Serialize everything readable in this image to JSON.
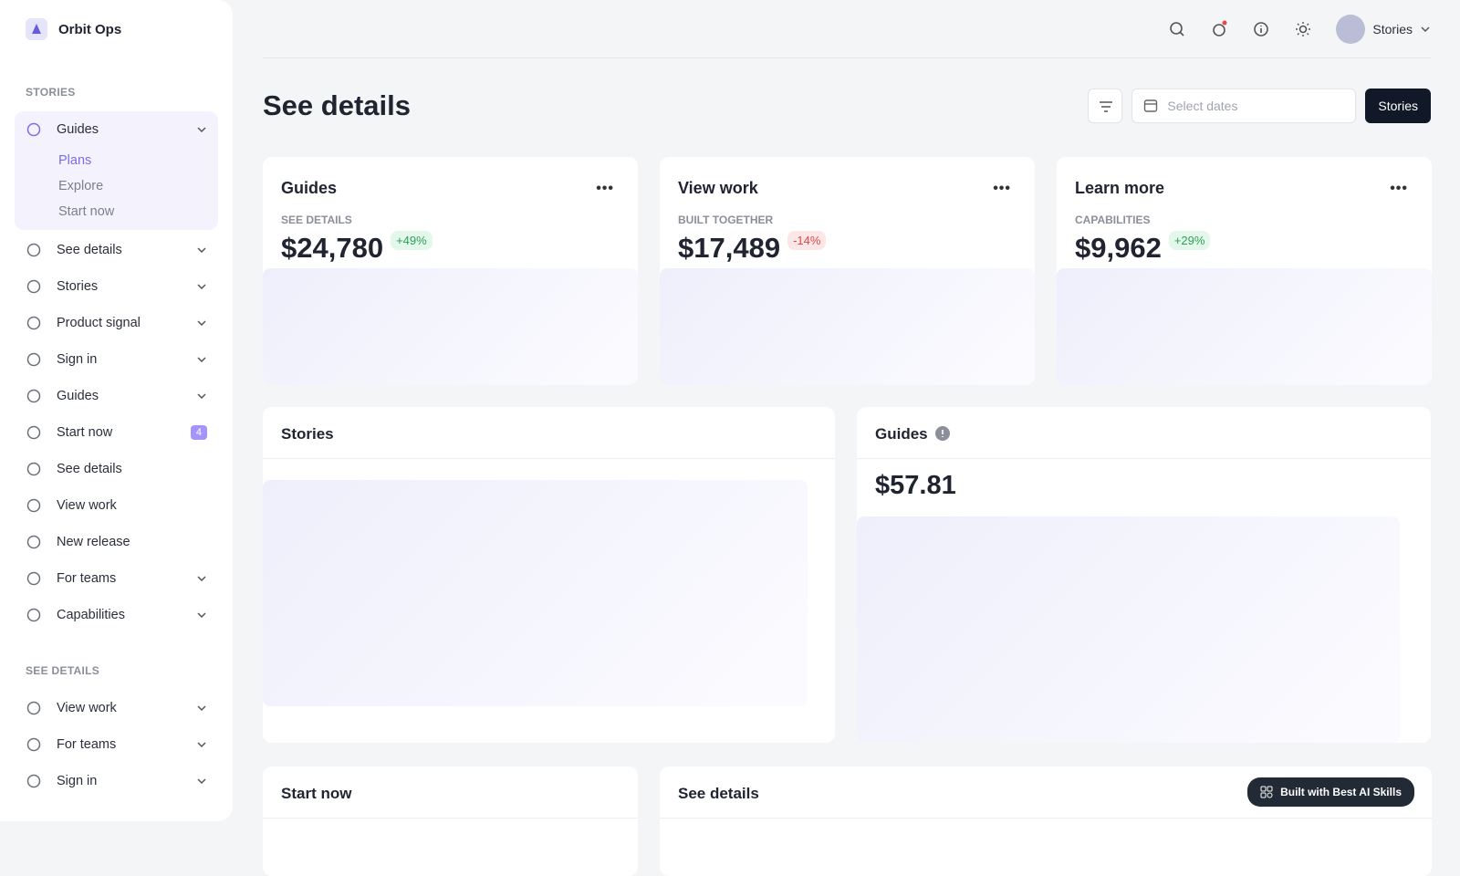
{
  "sidebar": {
    "brand": "Orbit Ops",
    "sections": [
      {
        "title": "STORIES",
        "items": [
          {
            "label": "Guides",
            "expandable": true,
            "open": true,
            "children": [
              "Plans",
              "Explore",
              "Start now"
            ]
          },
          {
            "label": "See details",
            "expandable": true
          },
          {
            "label": "Stories",
            "expandable": true
          },
          {
            "label": "Product signal",
            "expandable": true
          },
          {
            "label": "Sign in",
            "expandable": true
          },
          {
            "label": "Guides",
            "expandable": true
          },
          {
            "label": "Start now",
            "badge": 4
          },
          {
            "label": "See details"
          },
          {
            "label": "View work"
          },
          {
            "label": "New release"
          },
          {
            "label": "For teams",
            "expandable": true
          },
          {
            "label": "Capabilities",
            "expandable": true
          }
        ]
      },
      {
        "title": "SEE DETAILS",
        "items": [
          {
            "label": "View work",
            "expandable": true
          },
          {
            "label": "For teams",
            "expandable": true
          },
          {
            "label": "Sign in",
            "expandable": true
          }
        ]
      }
    ]
  },
  "topbar": {
    "user": "Stories"
  },
  "header": {
    "title": "See details",
    "date_placeholder": "Select dates",
    "button": "Stories"
  },
  "stat_cards": [
    {
      "title": "Guides",
      "label": "SEE DETAILS",
      "value": "$24,780",
      "change": "+49%",
      "trend": "up"
    },
    {
      "title": "View work",
      "label": "BUILT TOGETHER",
      "value": "$17,489",
      "change": "-14%",
      "trend": "down"
    },
    {
      "title": "Learn more",
      "label": "CAPABILITIES",
      "value": "$9,962",
      "change": "+29%",
      "trend": "up"
    }
  ],
  "panels": [
    {
      "title": "Stories"
    },
    {
      "title": "Guides",
      "value": "$57.81"
    }
  ],
  "bottom_panels": [
    {
      "title": "Start now"
    },
    {
      "title": "See details"
    }
  ],
  "footer_badge": "Built with Best AI Skills"
}
